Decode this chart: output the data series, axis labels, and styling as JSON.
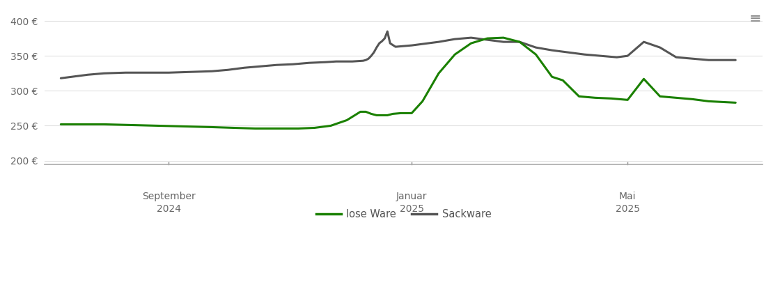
{
  "background_color": "#ffffff",
  "grid_color": "#e0e0e0",
  "line_lose_color": "#1a8000",
  "line_sack_color": "#555555",
  "legend_labels": [
    "lose Ware",
    "Sackware"
  ],
  "ylim": [
    195,
    415
  ],
  "yticks": [
    200,
    250,
    300,
    350,
    400
  ],
  "ytick_labels": [
    "200 €",
    "250 €",
    "300 €",
    "350 €",
    "400 €"
  ],
  "xlim": [
    -0.3,
    13.0
  ],
  "x_tick_positions": [
    2.0,
    6.5,
    10.5
  ],
  "x_tick_labels_top": [
    "September",
    "Januar",
    "Mai"
  ],
  "x_tick_labels_bottom": [
    "2024",
    "2025",
    "2025"
  ],
  "lose_ware_x": [
    0.0,
    0.3,
    0.8,
    1.3,
    1.8,
    2.3,
    2.8,
    3.2,
    3.6,
    4.0,
    4.4,
    4.7,
    5.0,
    5.3,
    5.55,
    5.65,
    5.75,
    5.85,
    5.95,
    6.05,
    6.15,
    6.3,
    6.5,
    6.7,
    7.0,
    7.3,
    7.6,
    7.9,
    8.2,
    8.5,
    8.8,
    9.1,
    9.3,
    9.6,
    9.9,
    10.2,
    10.5,
    10.8,
    11.1,
    11.4,
    11.7,
    12.0,
    12.5
  ],
  "lose_ware_y": [
    252,
    252,
    252,
    251,
    250,
    249,
    248,
    247,
    246,
    246,
    246,
    247,
    250,
    258,
    270,
    270,
    267,
    265,
    265,
    265,
    267,
    268,
    268,
    285,
    325,
    352,
    368,
    375,
    376,
    370,
    352,
    320,
    315,
    292,
    290,
    289,
    287,
    317,
    292,
    290,
    288,
    285,
    283
  ],
  "sack_ware_x": [
    0.0,
    0.2,
    0.5,
    0.8,
    1.2,
    1.6,
    2.0,
    2.4,
    2.8,
    3.1,
    3.4,
    3.7,
    4.0,
    4.3,
    4.6,
    4.9,
    5.1,
    5.4,
    5.6,
    5.65,
    5.7,
    5.75,
    5.8,
    5.85,
    5.9,
    5.95,
    6.0,
    6.05,
    6.1,
    6.2,
    6.35,
    6.5,
    6.7,
    7.0,
    7.3,
    7.6,
    7.9,
    8.2,
    8.5,
    8.8,
    9.1,
    9.4,
    9.7,
    10.0,
    10.3,
    10.5,
    10.8,
    11.1,
    11.4,
    11.7,
    12.0,
    12.5
  ],
  "sack_ware_y": [
    318,
    320,
    323,
    325,
    326,
    326,
    326,
    327,
    328,
    330,
    333,
    335,
    337,
    338,
    340,
    341,
    342,
    342,
    343,
    344,
    346,
    350,
    355,
    362,
    368,
    371,
    375,
    385,
    368,
    363,
    364,
    365,
    367,
    370,
    374,
    376,
    373,
    370,
    370,
    362,
    358,
    355,
    352,
    350,
    348,
    350,
    370,
    362,
    348,
    346,
    344,
    344
  ]
}
